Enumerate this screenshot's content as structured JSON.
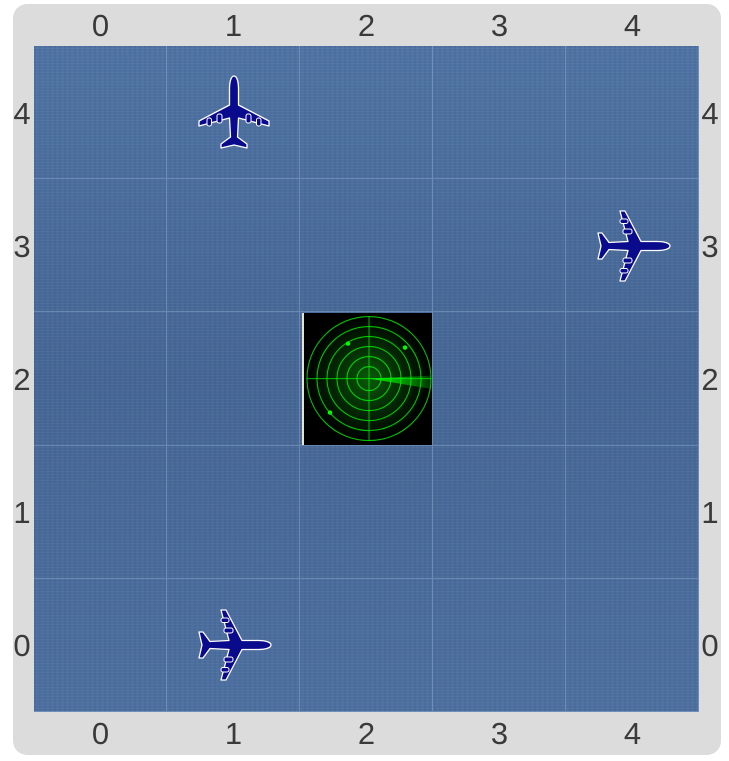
{
  "board": {
    "columns": [
      "0",
      "1",
      "2",
      "3",
      "4"
    ],
    "rows_top_to_bottom": [
      "4",
      "3",
      "2",
      "1",
      "0"
    ],
    "water_color": "#4a6c9c",
    "plane_color": "#0a0a8c",
    "radar_color": "#00ff00"
  },
  "pieces": [
    {
      "type": "airplane",
      "icon": "airplane-icon",
      "col": 1,
      "row": 4,
      "heading": "up"
    },
    {
      "type": "airplane",
      "icon": "airplane-icon",
      "col": 4,
      "row": 3,
      "heading": "right"
    },
    {
      "type": "radar",
      "icon": "radar-icon",
      "col": 2,
      "row": 2
    },
    {
      "type": "airplane",
      "icon": "airplane-icon",
      "col": 1,
      "row": 0,
      "heading": "right"
    }
  ]
}
